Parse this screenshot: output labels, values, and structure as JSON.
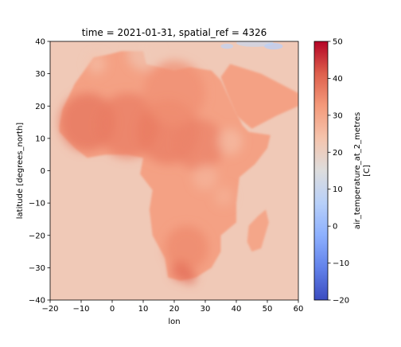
{
  "chart_data": {
    "type": "heatmap",
    "title": "time = 2021-01-31, spatial_ref = 4326",
    "xlabel": "lon",
    "ylabel": "latitude [degrees_north]",
    "xlim": [
      -20,
      60
    ],
    "ylim": [
      -40,
      40
    ],
    "x_ticks": [
      -20,
      -10,
      0,
      10,
      20,
      30,
      40,
      50,
      60
    ],
    "y_ticks": [
      -40,
      -30,
      -20,
      -10,
      0,
      10,
      20,
      30,
      40
    ],
    "colorbar": {
      "label_line1": "air_temperature_at_2_metres",
      "label_line2": "[C]",
      "range": [
        -20,
        50
      ],
      "ticks": [
        -20,
        -10,
        0,
        10,
        20,
        30,
        40,
        50
      ],
      "colormap": "coolwarm"
    },
    "background_value": 22,
    "africa_outline": [
      [
        -17,
        14
      ],
      [
        -16,
        19
      ],
      [
        -14,
        23
      ],
      [
        -12,
        27
      ],
      [
        -9,
        31
      ],
      [
        -6,
        35
      ],
      [
        -1,
        36
      ],
      [
        3,
        37
      ],
      [
        10,
        37
      ],
      [
        11,
        33
      ],
      [
        15,
        32
      ],
      [
        20,
        31
      ],
      [
        25,
        32
      ],
      [
        32,
        31
      ],
      [
        35,
        28
      ],
      [
        38,
        22
      ],
      [
        42,
        14
      ],
      [
        44,
        12
      ],
      [
        51,
        11
      ],
      [
        50,
        7
      ],
      [
        46,
        2
      ],
      [
        41,
        -2
      ],
      [
        40,
        -10
      ],
      [
        40,
        -16
      ],
      [
        35,
        -20
      ],
      [
        35,
        -25
      ],
      [
        32,
        -30
      ],
      [
        27,
        -33
      ],
      [
        22,
        -34
      ],
      [
        18,
        -33
      ],
      [
        17,
        -27
      ],
      [
        13,
        -20
      ],
      [
        12,
        -12
      ],
      [
        13,
        -6
      ],
      [
        9,
        -1
      ],
      [
        10,
        4
      ],
      [
        5,
        5
      ],
      [
        -2,
        5
      ],
      [
        -8,
        4
      ],
      [
        -12,
        7
      ],
      [
        -17,
        12
      ]
    ],
    "madagascar_outline": [
      [
        49.5,
        -12
      ],
      [
        50.5,
        -16
      ],
      [
        48,
        -24
      ],
      [
        45,
        -25
      ],
      [
        43.5,
        -22
      ],
      [
        44,
        -17
      ],
      [
        47,
        -14
      ]
    ],
    "arabia_outline": [
      [
        35,
        29
      ],
      [
        38,
        33
      ],
      [
        48,
        30
      ],
      [
        56,
        26
      ],
      [
        60,
        24
      ],
      [
        60,
        20
      ],
      [
        53,
        17
      ],
      [
        45,
        13
      ],
      [
        40,
        17
      ],
      [
        37,
        24
      ]
    ],
    "hot_spots": [
      {
        "lon": -8,
        "lat": 15,
        "r": 9,
        "value": 38
      },
      {
        "lon": 5,
        "lat": 14,
        "r": 10,
        "value": 37
      },
      {
        "lon": 18,
        "lat": 12,
        "r": 10,
        "value": 37
      },
      {
        "lon": 28,
        "lat": 8,
        "r": 8,
        "value": 36
      },
      {
        "lon": 20,
        "lat": 24,
        "r": 10,
        "value": 34
      },
      {
        "lon": 24,
        "lat": -24,
        "r": 7,
        "value": 35
      },
      {
        "lon": 22,
        "lat": -31,
        "r": 3,
        "value": 39
      },
      {
        "lon": 25,
        "lat": -33,
        "r": 2,
        "value": 40
      }
    ],
    "cool_spots": [
      {
        "lon": 10,
        "lat": 36,
        "r": 5,
        "value": 22
      },
      {
        "lon": -5,
        "lat": 33,
        "r": 3,
        "value": 24
      },
      {
        "lon": 38,
        "lat": 9,
        "r": 4,
        "value": 24
      },
      {
        "lon": 30,
        "lat": -2,
        "r": 4,
        "value": 26
      },
      {
        "lon": 36,
        "lat": -8,
        "r": 3,
        "value": 27
      }
    ],
    "cold_patches": [
      {
        "lon": 46,
        "lat": 39.5,
        "rx": 6,
        "ry": 1.2,
        "value": 10
      },
      {
        "lon": 37,
        "lat": 38.5,
        "rx": 2,
        "ry": 0.8,
        "value": 8
      },
      {
        "lon": 52,
        "lat": 38.5,
        "rx": 3,
        "ry": 1,
        "value": 6
      }
    ]
  }
}
